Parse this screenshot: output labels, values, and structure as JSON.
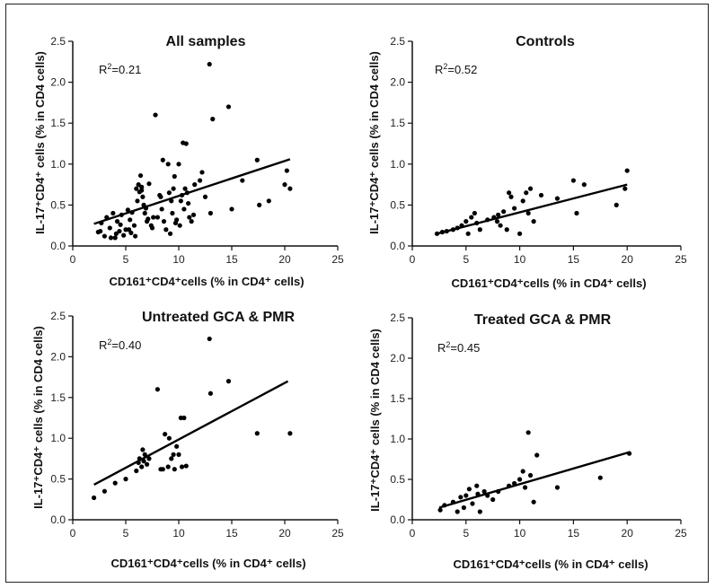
{
  "chart_data": [
    {
      "type": "scatter",
      "title": "All samples",
      "annotation": "=0.21",
      "xlabel": "CD161⁺CD4⁺cells (% in CD4⁺ cells)",
      "ylabel": "IL-17⁺CD4⁺ cells (% in CD4 cells)",
      "xlim": [
        0,
        25
      ],
      "ylim": [
        0,
        2.5
      ],
      "xticks": [
        "0",
        "5",
        "10",
        "15",
        "20",
        "25"
      ],
      "yticks": [
        "0.0",
        "0.5",
        "1.0",
        "1.5",
        "2.0",
        "2.5"
      ],
      "trendline": {
        "x": [
          2,
          20.5
        ],
        "y": [
          0.27,
          1.06
        ]
      },
      "points": {
        "x": [
          2.4,
          2.7,
          3.0,
          3.2,
          3.5,
          3.8,
          4.0,
          4.2,
          4.4,
          4.5,
          4.6,
          4.8,
          5.0,
          5.2,
          5.4,
          5.5,
          5.6,
          5.8,
          6.0,
          6.1,
          6.2,
          6.3,
          6.4,
          6.5,
          6.6,
          6.7,
          6.8,
          7.0,
          7.2,
          7.4,
          7.5,
          7.6,
          7.8,
          8.0,
          8.2,
          8.4,
          8.5,
          8.6,
          8.8,
          9.0,
          9.1,
          9.2,
          9.3,
          9.4,
          9.5,
          9.6,
          9.8,
          10.0,
          10.1,
          10.2,
          10.3,
          10.4,
          10.5,
          10.6,
          10.7,
          10.8,
          11.0,
          11.2,
          11.5,
          12.0,
          12.5,
          12.9,
          13.0,
          13.2,
          14.7,
          15.0,
          16.0,
          17.4,
          17.6,
          18.5,
          20.0,
          20.2,
          20.5,
          2.6,
          3.6,
          5.3,
          6.9,
          7.1,
          8.3,
          9.7,
          5.9,
          4.1,
          10.9,
          11.4,
          12.2,
          6.5
        ],
        "y": [
          0.17,
          0.28,
          0.12,
          0.35,
          0.22,
          0.4,
          0.1,
          0.3,
          0.18,
          0.26,
          0.38,
          0.13,
          0.2,
          0.44,
          0.32,
          0.16,
          0.41,
          0.25,
          0.7,
          0.55,
          0.75,
          0.66,
          0.86,
          0.72,
          0.6,
          0.5,
          0.4,
          0.3,
          0.76,
          0.25,
          0.22,
          0.35,
          1.6,
          0.35,
          0.62,
          0.45,
          1.05,
          0.3,
          0.2,
          1.0,
          0.65,
          0.15,
          0.55,
          0.4,
          0.7,
          0.85,
          0.32,
          1.0,
          0.25,
          0.55,
          0.62,
          1.26,
          0.45,
          0.7,
          1.25,
          0.65,
          0.35,
          0.3,
          0.75,
          0.8,
          0.6,
          2.22,
          0.4,
          1.55,
          1.7,
          0.45,
          0.8,
          1.05,
          0.5,
          0.55,
          0.75,
          0.92,
          0.7,
          0.18,
          0.1,
          0.2,
          0.46,
          0.33,
          0.6,
          0.28,
          0.12,
          0.15,
          0.52,
          0.38,
          0.9,
          0.68
        ]
      }
    },
    {
      "type": "scatter",
      "title": "Controls",
      "annotation": "=0.52",
      "xlabel": "CD161⁺CD4⁺cells (% in CD4⁺ cells)",
      "ylabel": "IL-17⁺CD4⁺ cells (% in CD4 cells)",
      "xlim": [
        0,
        25
      ],
      "ylim": [
        0,
        2.5
      ],
      "xticks": [
        "0",
        "5",
        "10",
        "15",
        "20",
        "25"
      ],
      "yticks": [
        "0.0",
        "0.5",
        "1.0",
        "1.5",
        "2.0",
        "2.5"
      ],
      "trendline": {
        "x": [
          2.3,
          20
        ],
        "y": [
          0.15,
          0.75
        ]
      },
      "points": {
        "x": [
          2.3,
          2.8,
          3.2,
          3.8,
          4.2,
          4.6,
          5.0,
          5.2,
          5.5,
          5.8,
          6.0,
          6.3,
          7.0,
          7.6,
          8.0,
          8.2,
          8.5,
          8.8,
          9.0,
          9.2,
          9.5,
          10.0,
          10.3,
          10.6,
          10.8,
          11.0,
          11.3,
          12.0,
          13.5,
          15.0,
          15.3,
          16.0,
          19.0,
          19.8,
          20.0,
          7.9
        ],
        "y": [
          0.15,
          0.17,
          0.18,
          0.2,
          0.22,
          0.25,
          0.3,
          0.15,
          0.35,
          0.4,
          0.28,
          0.2,
          0.32,
          0.35,
          0.38,
          0.25,
          0.42,
          0.2,
          0.65,
          0.6,
          0.46,
          0.15,
          0.55,
          0.65,
          0.4,
          0.7,
          0.3,
          0.62,
          0.58,
          0.8,
          0.4,
          0.75,
          0.5,
          0.7,
          0.92,
          0.3
        ]
      }
    },
    {
      "type": "scatter",
      "title": "Untreated GCA & PMR",
      "annotation": "=0.40",
      "xlabel": "CD161⁺CD4⁺cells (% in CD4⁺ cells)",
      "ylabel": "IL-17⁺CD4⁺ cells (% in CD4 cells)",
      "xlim": [
        0,
        25
      ],
      "ylim": [
        0,
        2.5
      ],
      "xticks": [
        "0",
        "5",
        "10",
        "15",
        "20",
        "25"
      ],
      "yticks": [
        "0.0",
        "0.5",
        "1.0",
        "1.5",
        "2.0",
        "2.5"
      ],
      "trendline": {
        "x": [
          2,
          20.3
        ],
        "y": [
          0.43,
          1.7
        ]
      },
      "points": {
        "x": [
          2.0,
          3.0,
          4.0,
          5.0,
          6.0,
          6.2,
          6.3,
          6.5,
          6.6,
          6.7,
          6.8,
          7.0,
          7.2,
          8.0,
          8.3,
          8.5,
          8.7,
          9.0,
          9.1,
          9.3,
          9.5,
          9.6,
          9.8,
          10.0,
          10.2,
          10.3,
          10.5,
          10.7,
          12.9,
          13.0,
          14.7,
          17.4,
          20.5
        ],
        "y": [
          0.27,
          0.35,
          0.45,
          0.5,
          0.6,
          0.7,
          0.75,
          0.65,
          0.86,
          0.72,
          0.8,
          0.68,
          0.75,
          1.6,
          0.62,
          0.62,
          1.05,
          0.65,
          1.0,
          0.75,
          0.8,
          0.62,
          0.9,
          0.8,
          1.25,
          0.65,
          1.25,
          0.66,
          2.22,
          1.55,
          1.7,
          1.06,
          1.06
        ]
      }
    },
    {
      "type": "scatter",
      "title": "Treated GCA & PMR",
      "annotation": "=0.45",
      "xlabel": "CD161⁺CD4⁺cells (% in CD4⁺ cells)",
      "ylabel": "IL-17⁺CD4⁺ cells (% in CD4 cells)",
      "xlim": [
        0,
        25
      ],
      "ylim": [
        0,
        2.5
      ],
      "xticks": [
        "0",
        "5",
        "10",
        "15",
        "20",
        "25"
      ],
      "yticks": [
        "0.0",
        "0.5",
        "1.0",
        "1.5",
        "2.0",
        "2.5"
      ],
      "trendline": {
        "x": [
          2.5,
          20.3
        ],
        "y": [
          0.15,
          0.84
        ]
      },
      "points": {
        "x": [
          2.6,
          3.0,
          3.8,
          4.2,
          4.5,
          4.8,
          5.0,
          5.3,
          5.6,
          6.0,
          6.3,
          6.7,
          7.0,
          7.5,
          8.0,
          9.0,
          9.5,
          10.0,
          10.3,
          10.5,
          10.8,
          11.0,
          11.3,
          11.6,
          13.5,
          17.5,
          20.2,
          6.1
        ],
        "y": [
          0.12,
          0.18,
          0.22,
          0.1,
          0.28,
          0.15,
          0.3,
          0.38,
          0.2,
          0.42,
          0.1,
          0.35,
          0.3,
          0.25,
          0.35,
          0.42,
          0.45,
          0.5,
          0.6,
          0.4,
          1.08,
          0.55,
          0.22,
          0.8,
          0.4,
          0.52,
          0.82,
          0.32
        ]
      }
    }
  ]
}
